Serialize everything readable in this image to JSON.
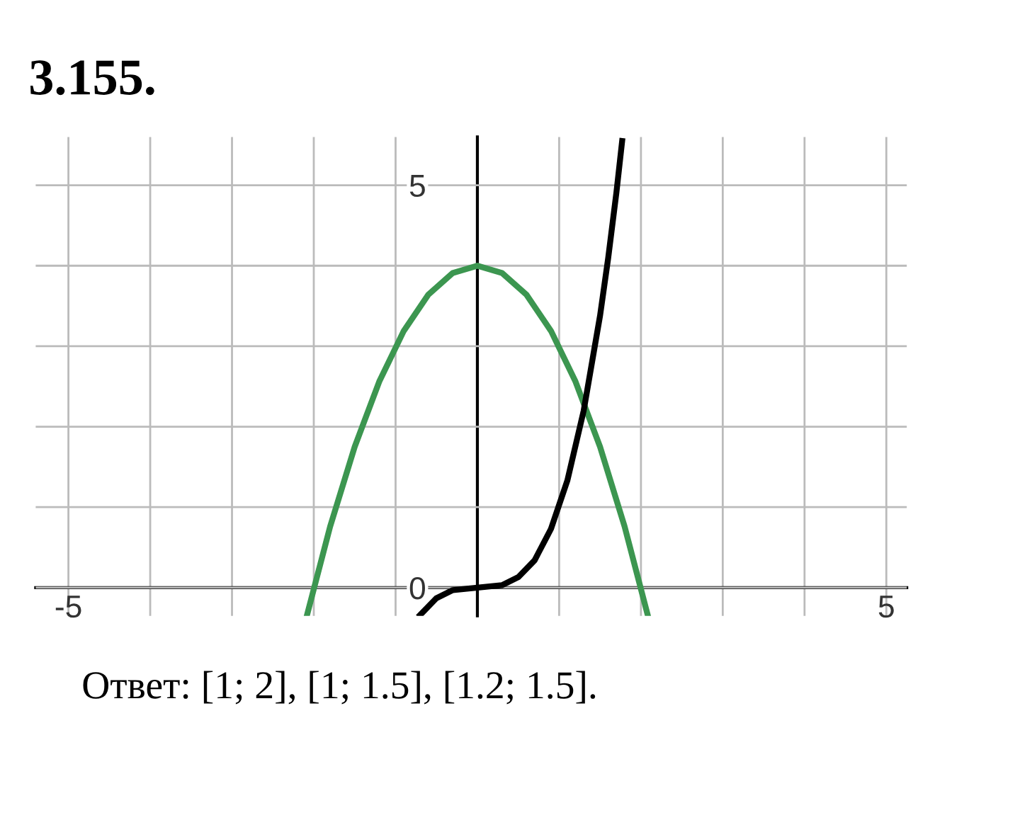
{
  "chart_data": {
    "type": "line",
    "title": "3.155.",
    "annotations": [
      "Ответ: [1; 2], [1; 1.5], [1.2; 1.5]."
    ],
    "xlim": [
      -5.4,
      5.25
    ],
    "ylim": [
      -0.35,
      5.6
    ],
    "xticks": [
      -5,
      {
        "value": -4,
        "label": null
      },
      {
        "value": -3,
        "label": null
      },
      {
        "value": -2,
        "label": null
      },
      {
        "value": -1,
        "label": null
      },
      {
        "value": 0,
        "label": null
      },
      {
        "value": 1,
        "label": null
      },
      {
        "value": 2,
        "label": null
      },
      {
        "value": 3,
        "label": null
      },
      {
        "value": 4,
        "label": null
      },
      5
    ],
    "yticks": [
      0,
      {
        "value": 1,
        "label": null
      },
      {
        "value": 2,
        "label": null
      },
      {
        "value": 3,
        "label": null
      },
      {
        "value": 4,
        "label": null
      },
      5
    ],
    "grid": true,
    "marker": "none",
    "line_style": "solid",
    "series": [
      {
        "color": "#3c9650",
        "x": [
          -2.08,
          -1.8,
          -1.5,
          -1.2,
          -0.9,
          -0.6,
          -0.3,
          0,
          0.3,
          0.6,
          0.9,
          1.2,
          1.5,
          1.8,
          2.08
        ],
        "values": [
          -0.33,
          0.76,
          1.75,
          2.56,
          3.19,
          3.64,
          3.91,
          4,
          3.91,
          3.64,
          3.19,
          2.56,
          1.75,
          0.76,
          -0.33
        ]
      },
      {
        "color": "#000000",
        "x": [
          -0.7,
          -0.5,
          -0.3,
          0,
          0.3,
          0.5,
          0.7,
          0.9,
          1.1,
          1.3,
          1.5,
          1.6,
          1.7,
          1.77
        ],
        "values": [
          -0.34,
          -0.13,
          -0.03,
          0,
          0.03,
          0.13,
          0.34,
          0.73,
          1.33,
          2.2,
          3.38,
          4.1,
          4.91,
          5.55
        ]
      }
    ]
  }
}
